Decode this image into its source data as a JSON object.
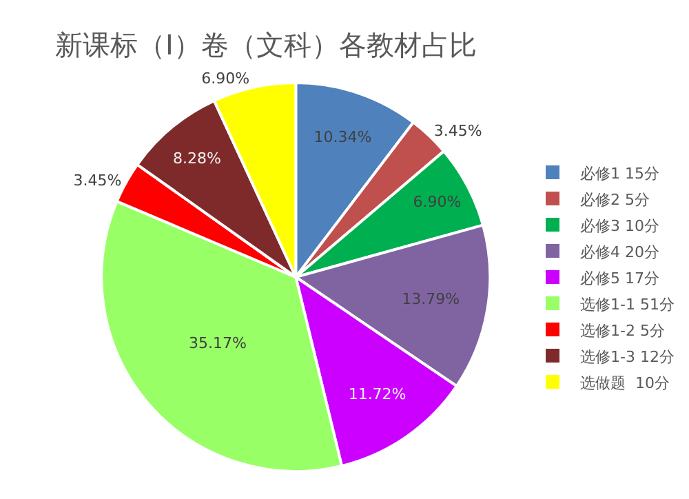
{
  "chart_data": {
    "type": "pie",
    "title": "新课标（Ⅰ）卷（文科）各教材占比",
    "categories": [
      "必修1 15分",
      "必修2 5分",
      "必修3 10分",
      "必修4 20分",
      "必修5 17分",
      "选修1-1 51分",
      "选修1-2 5分",
      "选修1-3 12分",
      "选做题  10分"
    ],
    "values": [
      10.34,
      3.45,
      6.9,
      13.79,
      11.72,
      35.17,
      3.45,
      8.28,
      6.9
    ],
    "value_labels": [
      "10.34%",
      "3.45%",
      "6.90%",
      "13.79%",
      "11.72%",
      "35.17%",
      "3.45%",
      "8.28%",
      "6.90%"
    ],
    "colors": [
      "#4f81bd",
      "#c0504d",
      "#00b050",
      "#8064a2",
      "#cc00ff",
      "#99ff66",
      "#ff0000",
      "#7f2a2a",
      "#ffff00"
    ],
    "legend": "right"
  }
}
